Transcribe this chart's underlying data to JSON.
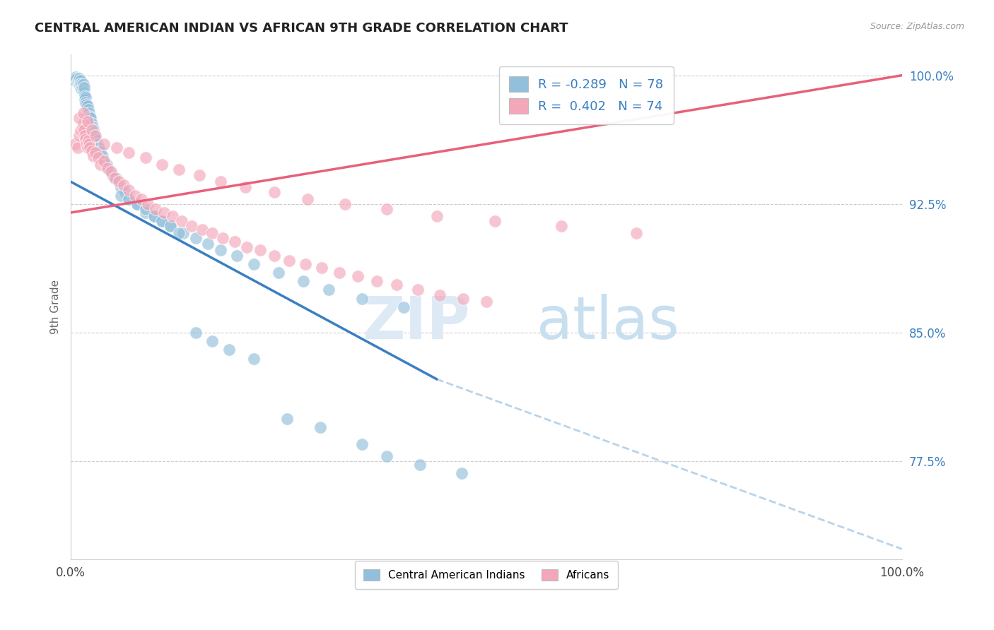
{
  "title": "CENTRAL AMERICAN INDIAN VS AFRICAN 9TH GRADE CORRELATION CHART",
  "source": "Source: ZipAtlas.com",
  "ylabel": "9th Grade",
  "yticks": [
    0.775,
    0.85,
    0.925,
    1.0
  ],
  "ytick_labels": [
    "77.5%",
    "85.0%",
    "92.5%",
    "100.0%"
  ],
  "xmin": 0.0,
  "xmax": 1.0,
  "ymin": 0.718,
  "ymax": 1.012,
  "legend_label1": "Central American Indians",
  "legend_label2": "Africans",
  "blue_color": "#92bfdb",
  "pink_color": "#f4a7b9",
  "blue_line_color": "#3a7fc1",
  "pink_line_color": "#e8607a",
  "dashed_line_color": "#b8d4ea",
  "scatter_blue_x": [
    0.005,
    0.006,
    0.007,
    0.008,
    0.009,
    0.01,
    0.01,
    0.011,
    0.012,
    0.012,
    0.013,
    0.013,
    0.014,
    0.015,
    0.015,
    0.016,
    0.016,
    0.017,
    0.017,
    0.018,
    0.018,
    0.019,
    0.02,
    0.021,
    0.022,
    0.023,
    0.024,
    0.025,
    0.026,
    0.027,
    0.028,
    0.03,
    0.032,
    0.034,
    0.036,
    0.038,
    0.04,
    0.043,
    0.046,
    0.05,
    0.054,
    0.06,
    0.065,
    0.07,
    0.08,
    0.09,
    0.1,
    0.11,
    0.12,
    0.135,
    0.15,
    0.165,
    0.18,
    0.2,
    0.22,
    0.25,
    0.28,
    0.31,
    0.35,
    0.4,
    0.06,
    0.07,
    0.08,
    0.09,
    0.1,
    0.11,
    0.12,
    0.13,
    0.15,
    0.17,
    0.19,
    0.22,
    0.26,
    0.3,
    0.35,
    0.38,
    0.42,
    0.47
  ],
  "scatter_blue_y": [
    0.997,
    0.999,
    0.998,
    0.996,
    0.997,
    0.998,
    0.995,
    0.994,
    0.997,
    0.995,
    0.994,
    0.992,
    0.993,
    0.995,
    0.991,
    0.99,
    0.993,
    0.988,
    0.986,
    0.987,
    0.984,
    0.983,
    0.982,
    0.98,
    0.978,
    0.976,
    0.975,
    0.972,
    0.97,
    0.968,
    0.965,
    0.963,
    0.96,
    0.958,
    0.956,
    0.953,
    0.95,
    0.948,
    0.945,
    0.942,
    0.94,
    0.935,
    0.932,
    0.928,
    0.925,
    0.92,
    0.918,
    0.915,
    0.912,
    0.908,
    0.905,
    0.902,
    0.898,
    0.895,
    0.89,
    0.885,
    0.88,
    0.875,
    0.87,
    0.865,
    0.93,
    0.928,
    0.925,
    0.922,
    0.918,
    0.915,
    0.912,
    0.908,
    0.85,
    0.845,
    0.84,
    0.835,
    0.8,
    0.795,
    0.785,
    0.778,
    0.773,
    0.768
  ],
  "scatter_pink_x": [
    0.005,
    0.008,
    0.01,
    0.012,
    0.014,
    0.015,
    0.016,
    0.017,
    0.018,
    0.019,
    0.02,
    0.021,
    0.022,
    0.023,
    0.025,
    0.027,
    0.03,
    0.033,
    0.036,
    0.04,
    0.044,
    0.048,
    0.053,
    0.058,
    0.064,
    0.07,
    0.077,
    0.085,
    0.093,
    0.102,
    0.112,
    0.122,
    0.133,
    0.145,
    0.158,
    0.17,
    0.183,
    0.197,
    0.212,
    0.228,
    0.245,
    0.263,
    0.282,
    0.302,
    0.323,
    0.345,
    0.368,
    0.392,
    0.417,
    0.444,
    0.472,
    0.5,
    0.01,
    0.015,
    0.02,
    0.025,
    0.03,
    0.04,
    0.055,
    0.07,
    0.09,
    0.11,
    0.13,
    0.155,
    0.18,
    0.21,
    0.245,
    0.285,
    0.33,
    0.38,
    0.44,
    0.51,
    0.59,
    0.68
  ],
  "scatter_pink_y": [
    0.96,
    0.958,
    0.965,
    0.968,
    0.97,
    0.972,
    0.968,
    0.965,
    0.963,
    0.96,
    0.958,
    0.962,
    0.96,
    0.958,
    0.956,
    0.953,
    0.955,
    0.952,
    0.948,
    0.95,
    0.946,
    0.944,
    0.94,
    0.938,
    0.936,
    0.933,
    0.93,
    0.928,
    0.925,
    0.922,
    0.92,
    0.918,
    0.915,
    0.912,
    0.91,
    0.908,
    0.905,
    0.903,
    0.9,
    0.898,
    0.895,
    0.892,
    0.89,
    0.888,
    0.885,
    0.883,
    0.88,
    0.878,
    0.875,
    0.872,
    0.87,
    0.868,
    0.975,
    0.978,
    0.973,
    0.968,
    0.965,
    0.96,
    0.958,
    0.955,
    0.952,
    0.948,
    0.945,
    0.942,
    0.938,
    0.935,
    0.932,
    0.928,
    0.925,
    0.922,
    0.918,
    0.915,
    0.912,
    0.908
  ],
  "blue_trendline_x": [
    0.0,
    0.44
  ],
  "blue_trendline_y": [
    0.938,
    0.823
  ],
  "dashed_line_x": [
    0.44,
    1.0
  ],
  "dashed_line_y": [
    0.823,
    0.724
  ],
  "pink_trendline_x": [
    0.0,
    1.0
  ],
  "pink_trendline_y": [
    0.92,
    1.0
  ]
}
